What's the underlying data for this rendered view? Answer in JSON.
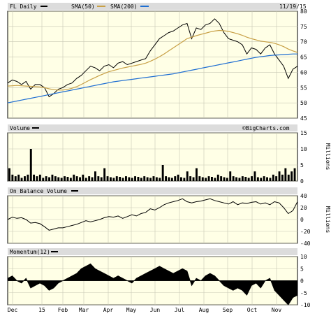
{
  "header": {
    "symbol_label": "FL Daily",
    "sma50_label": "SMA(50)",
    "sma200_label": "SMA(200)",
    "date": "11/19/15"
  },
  "colors": {
    "panel_bg": "#ffffe6",
    "grid": "#c8c8b4",
    "sma50": "#c8a046",
    "sma200": "#1e6ed2",
    "price": "#000000",
    "header_bar": "#dcdcdc"
  },
  "chart_data": [
    {
      "type": "line",
      "panel": "price",
      "ylim": [
        45,
        80
      ],
      "y_ticks": [
        45,
        50,
        55,
        60,
        65,
        70,
        75,
        80
      ],
      "x_tick_labels": [
        "Dec",
        "15",
        "Feb",
        "Mar",
        "Apr",
        "May",
        "Jun",
        "Jul",
        "Aug",
        "Sep",
        "Oct",
        "Nov"
      ],
      "x": [
        0,
        4,
        8,
        12,
        16,
        20,
        24,
        28,
        32,
        36,
        40,
        44,
        48,
        52,
        56,
        60,
        64,
        68,
        72,
        76,
        80,
        84,
        88,
        92,
        96,
        100,
        104,
        108,
        112,
        116,
        120,
        124,
        128,
        132,
        136,
        140,
        144,
        148,
        152,
        156,
        160,
        164,
        168,
        172,
        176,
        180,
        184,
        188,
        192,
        196,
        200,
        204,
        208,
        212,
        216,
        220,
        224,
        228,
        232,
        236,
        240,
        244,
        248,
        252
      ],
      "series": [
        {
          "name": "FL Daily",
          "values": [
            56.5,
            57.5,
            57.0,
            56.0,
            57.0,
            54.5,
            56.0,
            56.0,
            55.0,
            52.0,
            53.0,
            54.5,
            55.0,
            56.0,
            56.5,
            58.0,
            59.0,
            60.5,
            62.0,
            61.5,
            60.5,
            62.0,
            62.5,
            61.5,
            63.0,
            63.5,
            62.5,
            63.0,
            63.5,
            64.0,
            64.5,
            67.0,
            69.0,
            71.0,
            72.0,
            73.0,
            73.5,
            74.5,
            75.5,
            76.0,
            71.0,
            74.5,
            74.0,
            75.5,
            76.0,
            77.5,
            76.0,
            73.0,
            71.0,
            70.5,
            70.0,
            69.0,
            66.0,
            68.0,
            67.5,
            66.0,
            68.0,
            69.0,
            66.0,
            64.0,
            62.0,
            58.0,
            61.0,
            62.0
          ]
        },
        {
          "name": "SMA(50)",
          "values": [
            55.5,
            55.6,
            55.7,
            55.6,
            55.5,
            55.4,
            55.3,
            55.2,
            55.0,
            54.6,
            54.3,
            54.2,
            54.2,
            54.4,
            54.8,
            55.3,
            56.0,
            56.8,
            57.6,
            58.3,
            59.0,
            59.6,
            60.2,
            60.6,
            61.0,
            61.4,
            61.7,
            62.0,
            62.3,
            62.6,
            63.0,
            63.6,
            64.3,
            65.1,
            66.0,
            67.0,
            68.0,
            69.0,
            70.0,
            71.0,
            71.5,
            72.0,
            72.4,
            72.8,
            73.2,
            73.5,
            73.7,
            73.6,
            73.4,
            73.0,
            72.6,
            72.1,
            71.5,
            71.0,
            70.6,
            70.2,
            70.0,
            69.8,
            69.5,
            69.0,
            68.4,
            67.6,
            67.0,
            66.5
          ]
        },
        {
          "name": "SMA(200)",
          "values": [
            50.0,
            50.3,
            50.6,
            50.9,
            51.2,
            51.5,
            51.8,
            52.1,
            52.4,
            52.7,
            53.0,
            53.3,
            53.6,
            53.9,
            54.2,
            54.5,
            54.8,
            55.1,
            55.4,
            55.7,
            56.0,
            56.3,
            56.6,
            56.9,
            57.1,
            57.3,
            57.5,
            57.7,
            57.9,
            58.1,
            58.3,
            58.5,
            58.7,
            58.9,
            59.1,
            59.3,
            59.5,
            59.8,
            60.1,
            60.4,
            60.7,
            61.0,
            61.3,
            61.6,
            61.9,
            62.2,
            62.5,
            62.8,
            63.1,
            63.4,
            63.7,
            64.0,
            64.3,
            64.6,
            64.9,
            65.1,
            65.3,
            65.5,
            65.6,
            65.7,
            65.8,
            65.9,
            66.0,
            66.0
          ]
        }
      ]
    },
    {
      "type": "bar",
      "panel": "volume",
      "title": "Volume",
      "ylabel": "Millions",
      "ylim": [
        0,
        15
      ],
      "y_ticks": [
        0,
        5,
        10,
        15
      ],
      "watermark": "©BigCharts.com",
      "values": [
        4,
        2,
        1.5,
        2,
        1,
        1.5,
        2,
        10,
        2,
        1.5,
        2,
        1,
        1.5,
        1.2,
        2,
        1.5,
        1.2,
        1,
        1.5,
        1.3,
        1,
        2,
        1.5,
        1.2,
        2,
        1,
        1.5,
        1.2,
        3,
        1.5,
        1.2,
        4,
        1.5,
        1.2,
        1,
        1.5,
        1.3,
        1,
        1.5,
        1.2,
        1,
        1.5,
        1.3,
        1,
        1.5,
        1.2,
        1,
        1.5,
        1.2,
        1,
        5,
        1.5,
        1.2,
        1,
        1.5,
        2,
        1.2,
        1,
        3,
        1.5,
        1.2,
        4,
        1.5,
        1.2,
        1,
        1.5,
        1.3,
        1,
        2,
        1.5,
        1.2,
        1,
        3,
        1.5,
        1.2,
        1,
        1.5,
        1.3,
        1,
        1.5,
        3,
        1.2,
        1,
        1.5,
        1.2,
        1,
        2,
        1.5,
        3,
        2,
        4,
        2,
        3,
        4
      ]
    },
    {
      "type": "line",
      "panel": "obv",
      "title": "On Balance Volume",
      "ylabel": "Millions",
      "ylim": [
        -40,
        40
      ],
      "y_ticks": [
        -40,
        -20,
        0,
        20,
        40
      ],
      "x": [
        0,
        4,
        8,
        12,
        16,
        20,
        24,
        28,
        32,
        36,
        40,
        44,
        48,
        52,
        56,
        60,
        64,
        68,
        72,
        76,
        80,
        84,
        88,
        92,
        96,
        100,
        104,
        108,
        112,
        116,
        120,
        124,
        128,
        132,
        136,
        140,
        144,
        148,
        152,
        156,
        160,
        164,
        168,
        172,
        176,
        180,
        184,
        188,
        192,
        196,
        200,
        204,
        208,
        212,
        216,
        220,
        224,
        228,
        232,
        236,
        240,
        244,
        248,
        252
      ],
      "values": [
        0,
        4,
        2,
        3,
        0,
        -6,
        -5,
        -7,
        -12,
        -18,
        -16,
        -14,
        -14,
        -12,
        -10,
        -8,
        -5,
        -2,
        -4,
        -2,
        0,
        3,
        5,
        4,
        6,
        2,
        5,
        8,
        6,
        10,
        12,
        18,
        16,
        20,
        25,
        28,
        30,
        32,
        35,
        30,
        28,
        30,
        31,
        33,
        35,
        32,
        30,
        28,
        26,
        30,
        25,
        28,
        27,
        29,
        30,
        26,
        28,
        25,
        30,
        28,
        20,
        10,
        15,
        30
      ]
    },
    {
      "type": "area",
      "panel": "momentum",
      "title": "Momentum(12)",
      "ylim": [
        -10,
        10
      ],
      "y_ticks": [
        -10,
        -5,
        0,
        5,
        10
      ],
      "x_tick_labels": [
        "Dec",
        "15",
        "Feb",
        "Mar",
        "Apr",
        "May",
        "Jun",
        "Jul",
        "Aug",
        "Sep",
        "Oct",
        "Nov"
      ],
      "x": [
        0,
        4,
        8,
        12,
        16,
        20,
        24,
        28,
        32,
        36,
        40,
        44,
        48,
        52,
        56,
        60,
        64,
        68,
        72,
        76,
        80,
        84,
        88,
        92,
        96,
        100,
        104,
        108,
        112,
        116,
        120,
        124,
        128,
        132,
        136,
        140,
        144,
        148,
        152,
        156,
        160,
        164,
        168,
        172,
        176,
        180,
        184,
        188,
        192,
        196,
        200,
        204,
        208,
        212,
        216,
        220,
        224,
        228,
        232,
        236,
        240,
        244,
        248,
        252
      ],
      "values": [
        1,
        2,
        0,
        -1,
        1,
        -3,
        -2,
        -1,
        -2,
        -4,
        -3,
        -1,
        0,
        1,
        2,
        3,
        5,
        6,
        7,
        5,
        4,
        3,
        2,
        1,
        2,
        1,
        0,
        -1,
        1,
        2,
        3,
        4,
        5,
        6,
        5,
        4,
        3,
        4,
        5,
        4,
        -2,
        1,
        0,
        2,
        3,
        2,
        0,
        -2,
        -3,
        -4,
        -3,
        -4,
        -6,
        -2,
        -1,
        -3,
        0,
        1,
        -4,
        -6,
        -8,
        -10,
        -7,
        -6
      ]
    }
  ]
}
